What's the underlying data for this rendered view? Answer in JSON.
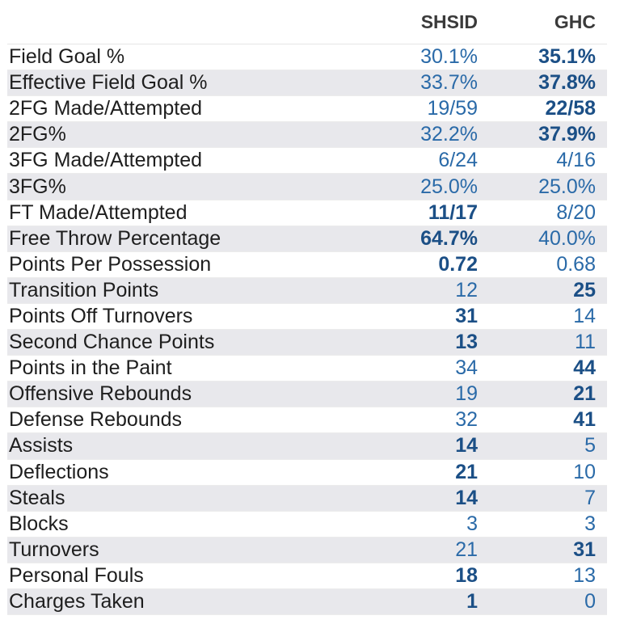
{
  "chart_data": {
    "type": "table",
    "columns": [
      "",
      "SHSID",
      "GHC"
    ],
    "rows": [
      {
        "label": "Field Goal %",
        "shsid": "30.1%",
        "ghc": "35.1%",
        "leader": "ghc"
      },
      {
        "label": "Effective Field Goal %",
        "shsid": "33.7%",
        "ghc": "37.8%",
        "leader": "ghc"
      },
      {
        "label": "2FG Made/Attempted",
        "shsid": "19/59",
        "ghc": "22/58",
        "leader": "ghc"
      },
      {
        "label": "2FG%",
        "shsid": "32.2%",
        "ghc": "37.9%",
        "leader": "ghc"
      },
      {
        "label": "3FG Made/Attempted",
        "shsid": "6/24",
        "ghc": "4/16",
        "leader": ""
      },
      {
        "label": "3FG%",
        "shsid": "25.0%",
        "ghc": "25.0%",
        "leader": ""
      },
      {
        "label": "FT Made/Attempted",
        "shsid": "11/17",
        "ghc": "8/20",
        "leader": "shsid"
      },
      {
        "label": "Free Throw Percentage",
        "shsid": "64.7%",
        "ghc": "40.0%",
        "leader": "shsid"
      },
      {
        "label": "Points Per Possession",
        "shsid": "0.72",
        "ghc": "0.68",
        "leader": "shsid"
      },
      {
        "label": "Transition Points",
        "shsid": "12",
        "ghc": "25",
        "leader": "ghc"
      },
      {
        "label": "Points Off Turnovers",
        "shsid": "31",
        "ghc": "14",
        "leader": "shsid"
      },
      {
        "label": "Second Chance Points",
        "shsid": "13",
        "ghc": "11",
        "leader": "shsid"
      },
      {
        "label": "Points in the Paint",
        "shsid": "34",
        "ghc": "44",
        "leader": "ghc"
      },
      {
        "label": "Offensive Rebounds",
        "shsid": "19",
        "ghc": "21",
        "leader": "ghc"
      },
      {
        "label": "Defense Rebounds",
        "shsid": "32",
        "ghc": "41",
        "leader": "ghc"
      },
      {
        "label": "Assists",
        "shsid": "14",
        "ghc": "5",
        "leader": "shsid"
      },
      {
        "label": "Deflections",
        "shsid": "21",
        "ghc": "10",
        "leader": "shsid"
      },
      {
        "label": "Steals",
        "shsid": "14",
        "ghc": "7",
        "leader": "shsid"
      },
      {
        "label": "Blocks",
        "shsid": "3",
        "ghc": "3",
        "leader": ""
      },
      {
        "label": "Turnovers",
        "shsid": "21",
        "ghc": "31",
        "leader": "ghc"
      },
      {
        "label": "Personal Fouls",
        "shsid": "18",
        "ghc": "13",
        "leader": "shsid"
      },
      {
        "label": "Charges Taken",
        "shsid": "1",
        "ghc": "0",
        "leader": "shsid"
      }
    ]
  },
  "colors": {
    "value": "#2a6aa8",
    "value_lead": "#1b4f86",
    "row_shade": "#e8e8ec",
    "header_text": "#3a3a3a",
    "label_text": "#1e1e1e"
  }
}
